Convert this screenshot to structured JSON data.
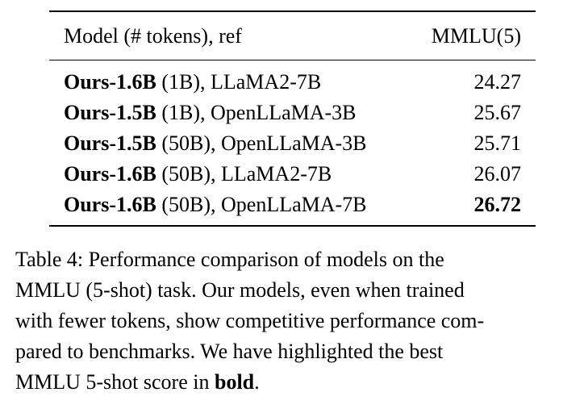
{
  "table": {
    "header": {
      "model": "Model (# tokens), ref",
      "score": "MMLU(5)"
    },
    "rows": [
      {
        "model_bold": "Ours-1.6B",
        "model_rest": " (1B), LLaMA2-7B",
        "score": "24.27",
        "best": false
      },
      {
        "model_bold": "Ours-1.5B",
        "model_rest": " (1B), OpenLLaMA-3B",
        "score": "25.67",
        "best": false
      },
      {
        "model_bold": "Ours-1.5B",
        "model_rest": " (50B), OpenLLaMA-3B",
        "score": "25.71",
        "best": false
      },
      {
        "model_bold": "Ours-1.6B",
        "model_rest": " (50B), LLaMA2-7B",
        "score": "26.07",
        "best": false
      },
      {
        "model_bold": "Ours-1.6B",
        "model_rest": " (50B), OpenLLaMA-7B",
        "score": "26.72",
        "best": true
      }
    ]
  },
  "caption": {
    "line1": "Table 4: Performance comparison of models on the",
    "line2": "MMLU (5-shot) task. Our models, even when trained",
    "line3": "with fewer tokens, show competitive performance com-",
    "line4": "pared to benchmarks. We have highlighted the best",
    "line5_pre": "MMLU 5-shot score in ",
    "line5_bold": "bold",
    "line5_post": "."
  }
}
